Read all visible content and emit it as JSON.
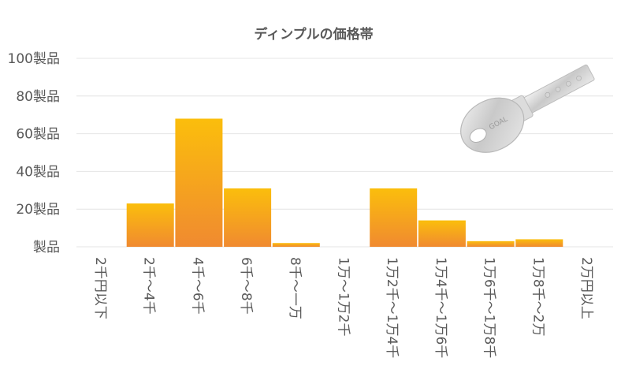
{
  "chart_data": {
    "type": "bar",
    "title": "ディンプルの価格帯",
    "xlabel": "",
    "ylabel": "",
    "ylim": [
      0,
      100
    ],
    "yticks": [
      {
        "value": 0,
        "label": "製品"
      },
      {
        "value": 20,
        "label": "20製品"
      },
      {
        "value": 40,
        "label": "40製品"
      },
      {
        "value": 60,
        "label": "60製品"
      },
      {
        "value": 80,
        "label": "80製品"
      },
      {
        "value": 100,
        "label": "100製品"
      }
    ],
    "categories": [
      "2千円以下",
      "2千～4千",
      "4千～6千",
      "6千～8千",
      "8千～一万",
      "1万～1万2千",
      "1万2千～1万4千",
      "1万4千～1万6千",
      "1万6千～1万8千",
      "1万8千～2万",
      "2万円以上"
    ],
    "values": [
      0,
      23,
      68,
      31,
      2,
      0,
      31,
      14,
      3,
      4,
      0
    ],
    "grid": true,
    "legend": "none",
    "colors": {
      "bar_top": "#fbbe0c",
      "bar_bottom": "#f08a30",
      "grid": "#e4e4e4",
      "text": "#595959"
    },
    "image": {
      "icon": "dimple-key-photo",
      "lettering": "GOAL"
    }
  }
}
